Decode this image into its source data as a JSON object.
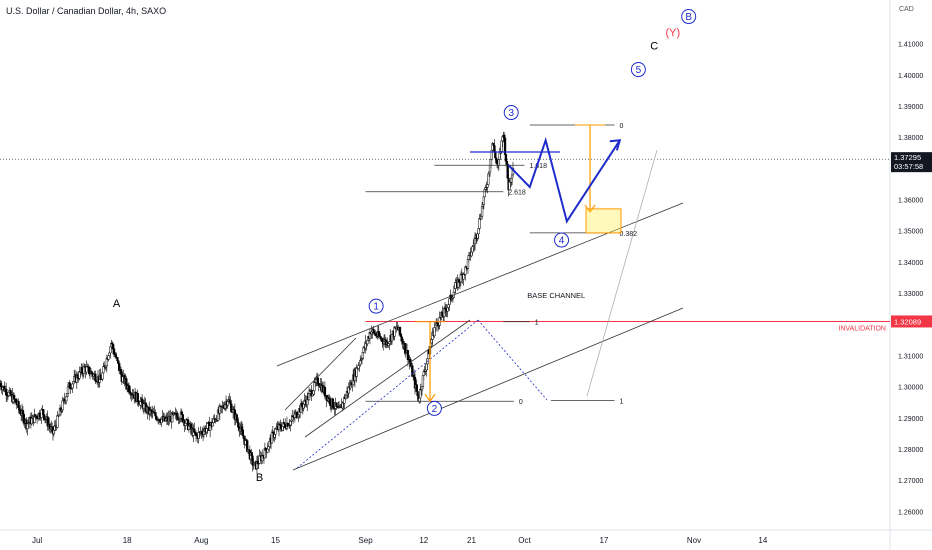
{
  "header": {
    "title": "U.S. Dollar / Canadian Dollar, 4h, SAXO"
  },
  "axis": {
    "currency": "CAD"
  },
  "colors": {
    "up": "#000000",
    "down": "#000000",
    "invalidation": "#f23645",
    "blue_path": "#1e2ccc",
    "orange": "#ff9800",
    "channel": "#333333"
  },
  "chart_data": {
    "type": "candlestick",
    "symbol": "USDCAD",
    "timeframe": "4h",
    "ylim": [
      1.254,
      1.424
    ],
    "x_range_days": [
      0,
      168
    ],
    "price_ticks": [
      1.26,
      1.27,
      1.28,
      1.29,
      1.3,
      1.31,
      1.32,
      1.33,
      1.34,
      1.35,
      1.36,
      1.37,
      1.38,
      1.39,
      1.4,
      1.41
    ],
    "price_tick_labels": [
      "1.26000",
      "1.27000",
      "1.28000",
      "1.29000",
      "1.30000",
      "1.31000",
      "1.32000",
      "1.33000",
      "1.34000",
      "1.35000",
      "1.36000",
      "1.37000",
      "1.38000",
      "1.39000",
      "1.40000",
      "1.41000"
    ],
    "time_ticks": [
      {
        "label": "Jul",
        "day": 7
      },
      {
        "label": "18",
        "day": 24
      },
      {
        "label": "Aug",
        "day": 38
      },
      {
        "label": "15",
        "day": 52
      },
      {
        "label": "Sep",
        "day": 69
      },
      {
        "label": "12",
        "day": 80
      },
      {
        "label": "21",
        "day": 89
      },
      {
        "label": "Oct",
        "day": 99
      },
      {
        "label": "17",
        "day": 114
      },
      {
        "label": "Nov",
        "day": 131
      },
      {
        "label": "14",
        "day": 144
      }
    ],
    "price_path": [
      [
        0,
        1.301
      ],
      [
        3,
        1.295
      ],
      [
        5,
        1.288
      ],
      [
        8,
        1.292
      ],
      [
        10,
        1.285
      ],
      [
        13,
        1.3
      ],
      [
        16,
        1.306
      ],
      [
        19,
        1.302
      ],
      [
        21,
        1.314
      ],
      [
        23,
        1.303
      ],
      [
        25,
        1.298
      ],
      [
        28,
        1.292
      ],
      [
        31,
        1.289
      ],
      [
        34,
        1.291
      ],
      [
        37,
        1.284
      ],
      [
        40,
        1.288
      ],
      [
        43,
        1.296
      ],
      [
        45,
        1.288
      ],
      [
        47,
        1.279
      ],
      [
        48,
        1.274
      ],
      [
        50,
        1.279
      ],
      [
        52,
        1.286
      ],
      [
        55,
        1.289
      ],
      [
        58,
        1.296
      ],
      [
        60,
        1.302
      ],
      [
        62,
        1.296
      ],
      [
        64,
        1.292
      ],
      [
        67,
        1.304
      ],
      [
        70,
        1.318
      ],
      [
        73,
        1.314
      ],
      [
        75,
        1.319
      ],
      [
        77,
        1.31
      ],
      [
        79,
        1.296
      ],
      [
        80,
        1.304
      ],
      [
        82,
        1.319
      ],
      [
        84,
        1.324
      ],
      [
        86,
        1.332
      ],
      [
        88,
        1.338
      ],
      [
        90,
        1.349
      ],
      [
        92,
        1.366
      ],
      [
        93,
        1.378
      ],
      [
        94,
        1.37
      ],
      [
        95,
        1.382
      ],
      [
        96,
        1.364
      ],
      [
        97,
        1.372
      ]
    ],
    "current_price": {
      "value": 1.37295,
      "label": "1.37295",
      "countdown": "03:57:58"
    },
    "invalidation": {
      "value": 1.32089,
      "label": "1.32089",
      "text": "INVALIDATION"
    },
    "wave_labels": [
      {
        "text": "A",
        "day": 22,
        "price": 1.3268
      },
      {
        "text": "B",
        "day": 49,
        "price": 1.271
      },
      {
        "text": "1",
        "day": 71,
        "price": 1.3258,
        "circled": true
      },
      {
        "text": "2",
        "day": 82,
        "price": 1.293,
        "circled": true
      },
      {
        "text": "3",
        "day": 96.5,
        "price": 1.3879,
        "circled": true
      },
      {
        "text": "4",
        "day": 106,
        "price": 1.347,
        "circled": true
      },
      {
        "text": "5",
        "day": 120.5,
        "price": 1.4017,
        "circled": true
      },
      {
        "text": "C",
        "day": 123.5,
        "price": 1.4094
      },
      {
        "text": "(Y)",
        "day": 127,
        "price": 1.4138,
        "red": true
      },
      {
        "text": "B",
        "day": 130,
        "price": 1.4187,
        "circled": true
      }
    ],
    "fib_levels": [
      {
        "label": "0",
        "price": 1.3839,
        "from_day": 100,
        "to_day": 116
      },
      {
        "label": "0.382",
        "price": 1.3493,
        "from_day": 100,
        "to_day": 116
      },
      {
        "label": "1",
        "price": 1.2955,
        "from_day": 104,
        "to_day": 116
      },
      {
        "label": "1",
        "price": 1.3208,
        "from_day": 95,
        "to_day": 100
      },
      {
        "label": "2.618",
        "price": 1.3625,
        "from_day": 69,
        "to_day": 95
      },
      {
        "label": "1.618",
        "price": 1.371,
        "from_day": 82,
        "to_day": 99
      },
      {
        "label": "0",
        "price": 1.2953,
        "from_day": 69,
        "to_day": 97
      }
    ],
    "annotations": [
      {
        "text": "BASE CHANNEL",
        "day": 105,
        "price": 1.3284
      }
    ],
    "projection_path": [
      [
        96,
        1.371
      ],
      [
        100,
        1.364
      ],
      [
        103,
        1.379
      ],
      [
        107,
        1.353
      ],
      [
        117,
        1.379
      ]
    ]
  }
}
